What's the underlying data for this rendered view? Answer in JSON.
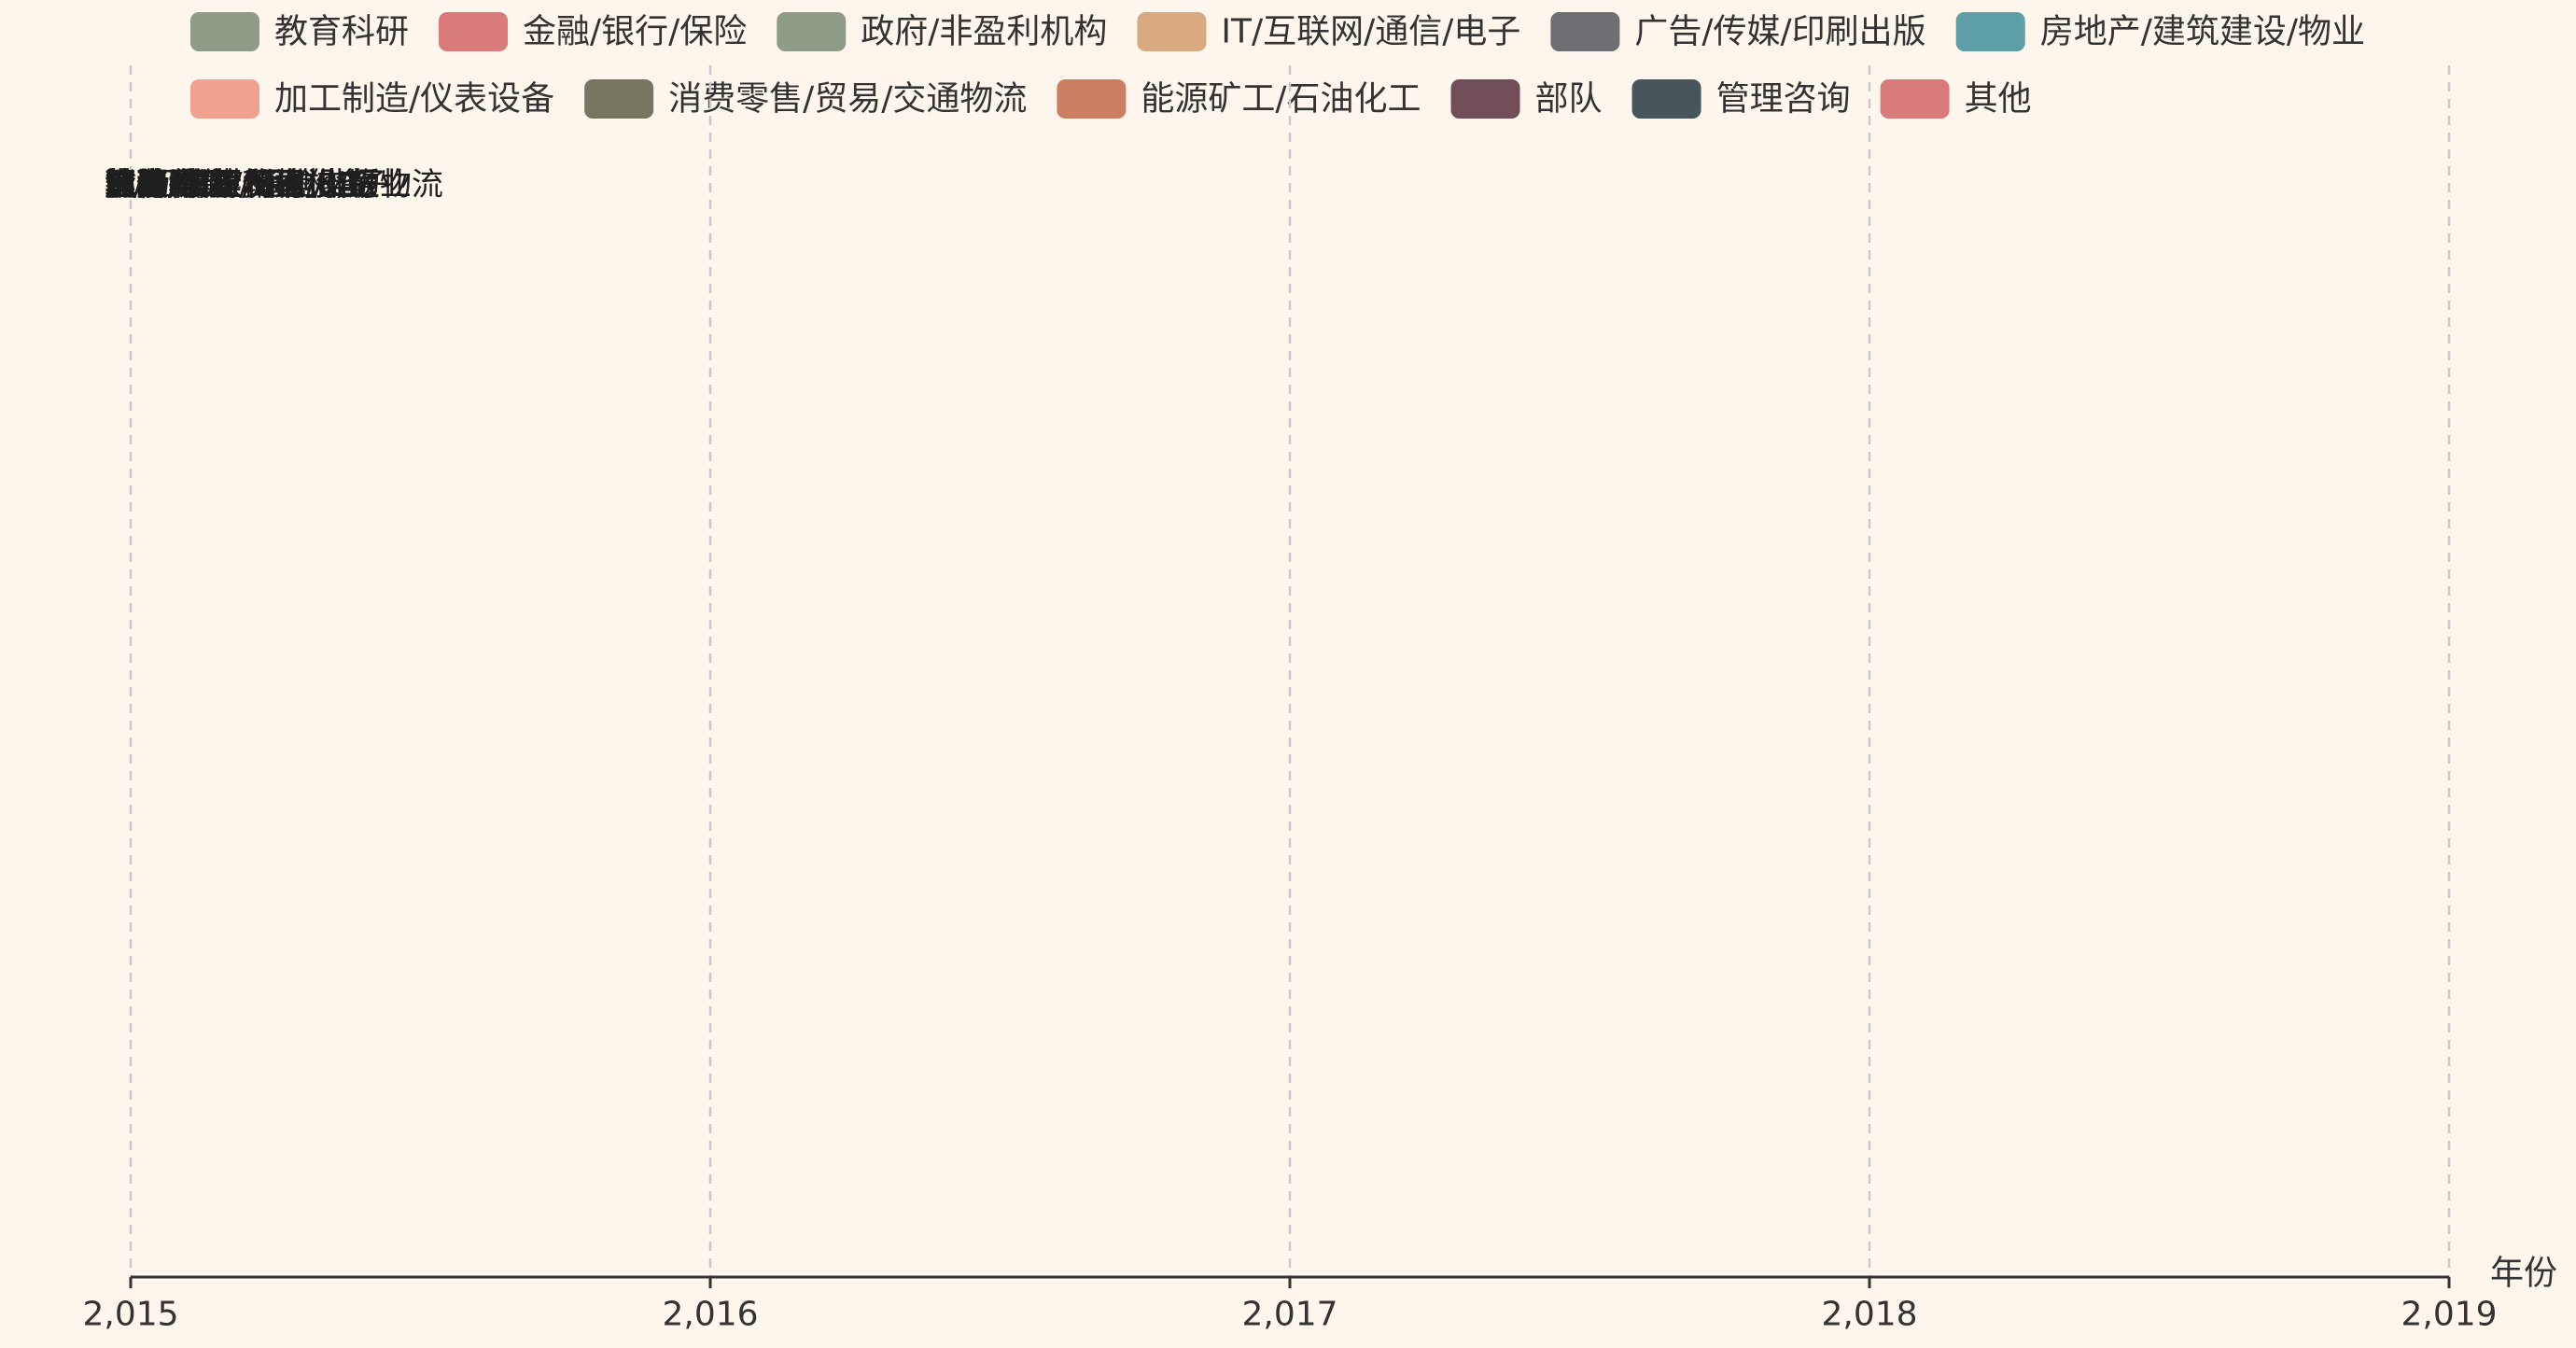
{
  "chart_data": {
    "type": "line",
    "xlabel": "年份",
    "ylabel": "",
    "x_ticks": [
      "2,015",
      "2,016",
      "2,017",
      "2,018",
      "2,019"
    ],
    "xlim": [
      2015,
      2019
    ],
    "grid": "vertical dashed",
    "legend_position": "top",
    "series": [
      {
        "name": "教育科研",
        "color": "#8f9d88"
      },
      {
        "name": "金融/银行/保险",
        "color": "#d97b7a"
      },
      {
        "name": "政府/非盈利机构",
        "color": "#8f9d88"
      },
      {
        "name": "IT/互联网/通信/电子",
        "color": "#d9aa7f"
      },
      {
        "name": "广告/传媒/印刷出版",
        "color": "#6e6f73"
      },
      {
        "name": "房地产/建筑建设/物业",
        "color": "#5e9ea6"
      },
      {
        "name": "加工制造/仪表设备",
        "color": "#f0a18f"
      },
      {
        "name": "消费零售/贸易/交通物流",
        "color": "#757560"
      },
      {
        "name": "能源矿工/石油化工",
        "color": "#cc7e62"
      },
      {
        "name": "部队",
        "color": "#714d59"
      },
      {
        "name": "管理咨询",
        "color": "#48565c"
      },
      {
        "name": "其他",
        "color": "#d97b7a"
      }
    ],
    "point_labels_at_2015": [
      "教育科研",
      "金融/银行/保险",
      "政府/非盈利机构",
      "IT/互联网/通信/电子",
      "广告/传媒/印刷出版",
      "房地产/建筑建设/物业",
      "加工制造/仪表设备",
      "消费零售/贸易/交通物流",
      "能源矿工/石油化工",
      "部队",
      "管理咨询",
      "其他"
    ]
  }
}
